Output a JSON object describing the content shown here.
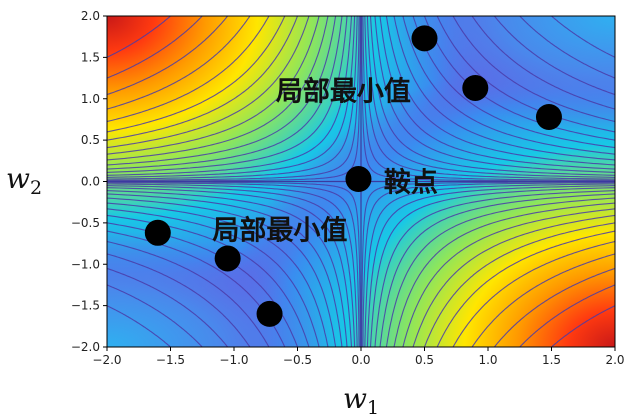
{
  "chart_data": {
    "type": "contour",
    "xlabel": "w",
    "xlabel_sub": "1",
    "ylabel": "w",
    "ylabel_sub": "2",
    "xlim": [
      -2.0,
      2.0
    ],
    "ylim": [
      -2.0,
      2.0
    ],
    "x_ticks": [
      "−2.0",
      "−1.5",
      "−1.0",
      "−0.5",
      "0.0",
      "0.5",
      "1.0",
      "1.5",
      "2.0"
    ],
    "y_ticks": [
      "2.0",
      "1.5",
      "1.0",
      "0.5",
      "0.0",
      "−0.5",
      "−1.0",
      "−1.5",
      "−2.0"
    ],
    "points": [
      {
        "x": 0.5,
        "y": 1.73
      },
      {
        "x": 0.9,
        "y": 1.13
      },
      {
        "x": 1.48,
        "y": 0.78
      },
      {
        "x": -0.02,
        "y": 0.03
      },
      {
        "x": -1.6,
        "y": -0.62
      },
      {
        "x": -1.05,
        "y": -0.93
      },
      {
        "x": -0.72,
        "y": -1.6
      }
    ],
    "annotations": [
      {
        "text": "局部最小值",
        "x": -0.67,
        "y": 1.1
      },
      {
        "text": "鞍点",
        "x": 0.18,
        "y": 0.0
      },
      {
        "text": "局部最小值",
        "x": -1.17,
        "y": -0.58
      }
    ],
    "colors": {
      "background_low": "#5d69e6",
      "contour": "#4a3ba8",
      "axis_lines": "#3a3aa0",
      "points": "#000000"
    }
  }
}
